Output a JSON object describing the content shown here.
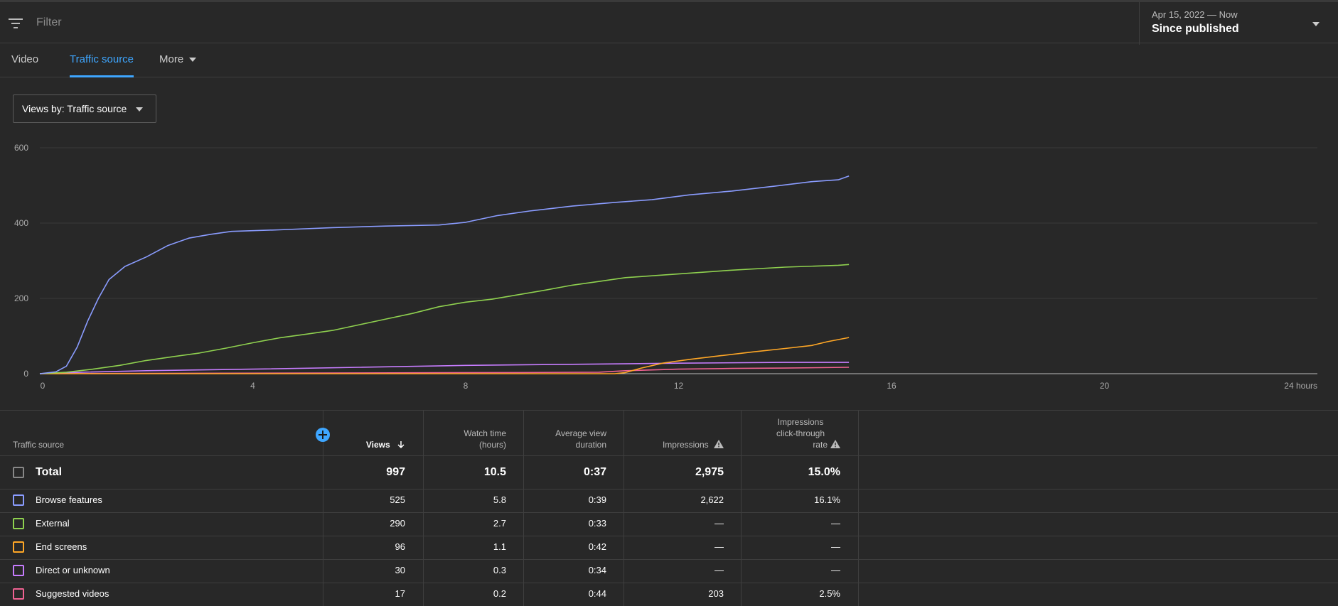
{
  "filter": {
    "placeholder": "Filter",
    "icon": "filter-icon"
  },
  "date": {
    "range": "Apr 15, 2022 — Now",
    "label": "Since published"
  },
  "tabs": [
    {
      "label": "Video",
      "active": false
    },
    {
      "label": "Traffic source",
      "active": true
    },
    {
      "label": "More",
      "active": false
    }
  ],
  "metric_select": {
    "label": "Views by: Traffic source"
  },
  "chart_data": {
    "type": "line",
    "xlabel": "",
    "ylabel": "",
    "xlim": [
      0,
      24
    ],
    "ylim": [
      0,
      600
    ],
    "x_ticks": [
      "0",
      "4",
      "8",
      "12",
      "16",
      "20",
      "24 hours"
    ],
    "y_ticks": [
      "0",
      "200",
      "400",
      "600"
    ],
    "grid": true,
    "series": [
      {
        "name": "Browse features",
        "color": "#8a9cff",
        "points": [
          [
            0,
            0
          ],
          [
            0.3,
            5
          ],
          [
            0.5,
            20
          ],
          [
            0.7,
            70
          ],
          [
            0.9,
            140
          ],
          [
            1.1,
            200
          ],
          [
            1.3,
            250
          ],
          [
            1.6,
            285
          ],
          [
            2.0,
            310
          ],
          [
            2.4,
            340
          ],
          [
            2.8,
            360
          ],
          [
            3.2,
            370
          ],
          [
            3.6,
            378
          ],
          [
            4.5,
            382
          ],
          [
            5.5,
            388
          ],
          [
            6.5,
            392
          ],
          [
            7.5,
            395
          ],
          [
            8.0,
            402
          ],
          [
            8.6,
            420
          ],
          [
            9.2,
            432
          ],
          [
            10.0,
            445
          ],
          [
            10.8,
            455
          ],
          [
            11.5,
            462
          ],
          [
            12.2,
            475
          ],
          [
            13.0,
            485
          ],
          [
            13.8,
            498
          ],
          [
            14.5,
            510
          ],
          [
            15.0,
            515
          ],
          [
            15.2,
            525
          ]
        ]
      },
      {
        "name": "External",
        "color": "#8fd14f",
        "points": [
          [
            0,
            0
          ],
          [
            0.5,
            4
          ],
          [
            1.0,
            12
          ],
          [
            1.5,
            22
          ],
          [
            2.0,
            35
          ],
          [
            2.5,
            45
          ],
          [
            3.0,
            55
          ],
          [
            3.5,
            68
          ],
          [
            4.0,
            82
          ],
          [
            4.5,
            95
          ],
          [
            5.0,
            105
          ],
          [
            5.5,
            115
          ],
          [
            6.0,
            130
          ],
          [
            6.5,
            145
          ],
          [
            7.0,
            160
          ],
          [
            7.5,
            178
          ],
          [
            8.0,
            190
          ],
          [
            8.5,
            198
          ],
          [
            9.0,
            210
          ],
          [
            9.5,
            222
          ],
          [
            10.0,
            235
          ],
          [
            10.5,
            245
          ],
          [
            11.0,
            255
          ],
          [
            11.5,
            260
          ],
          [
            12.0,
            265
          ],
          [
            12.5,
            270
          ],
          [
            13.0,
            275
          ],
          [
            14.0,
            283
          ],
          [
            15.0,
            288
          ],
          [
            15.2,
            290
          ]
        ]
      },
      {
        "name": "End screens",
        "color": "#ffa726",
        "points": [
          [
            0,
            0
          ],
          [
            10.8,
            0
          ],
          [
            11.0,
            3
          ],
          [
            11.3,
            15
          ],
          [
            11.7,
            28
          ],
          [
            12.2,
            38
          ],
          [
            12.8,
            48
          ],
          [
            13.4,
            58
          ],
          [
            14.0,
            67
          ],
          [
            14.5,
            75
          ],
          [
            14.8,
            85
          ],
          [
            15.2,
            96
          ]
        ]
      },
      {
        "name": "Direct or unknown",
        "color": "#c77dff",
        "points": [
          [
            0,
            0
          ],
          [
            0.8,
            4
          ],
          [
            2.0,
            8
          ],
          [
            4.0,
            12
          ],
          [
            6.0,
            17
          ],
          [
            8.0,
            22
          ],
          [
            10.0,
            25
          ],
          [
            12.0,
            28
          ],
          [
            14.0,
            30
          ],
          [
            15.2,
            30
          ]
        ]
      },
      {
        "name": "Suggested videos",
        "color": "#f06292",
        "points": [
          [
            0,
            0
          ],
          [
            2.0,
            1
          ],
          [
            6.0,
            2
          ],
          [
            9.0,
            3
          ],
          [
            10.5,
            4
          ],
          [
            11.0,
            8
          ],
          [
            11.5,
            10
          ],
          [
            12.0,
            12
          ],
          [
            13.0,
            14
          ],
          [
            14.0,
            15
          ],
          [
            15.2,
            17
          ]
        ]
      }
    ]
  },
  "table": {
    "headers": {
      "source": "Traffic source",
      "views": "Views",
      "watch_time": [
        "Watch time",
        "(hours)"
      ],
      "avg_duration": [
        "Average view",
        "duration"
      ],
      "impressions": "Impressions",
      "ctr": [
        "Impressions",
        "click-through",
        "rate"
      ]
    },
    "total": {
      "name": "Total",
      "views": "997",
      "watch_time": "10.5",
      "avg_duration": "0:37",
      "impressions": "2,975",
      "ctr": "15.0%"
    },
    "rows": [
      {
        "name": "Browse features",
        "color": "#8a9cff",
        "views": "525",
        "watch_time": "5.8",
        "avg_duration": "0:39",
        "impressions": "2,622",
        "ctr": "16.1%"
      },
      {
        "name": "External",
        "color": "#8fd14f",
        "views": "290",
        "watch_time": "2.7",
        "avg_duration": "0:33",
        "impressions": "—",
        "ctr": "—"
      },
      {
        "name": "End screens",
        "color": "#ffa726",
        "views": "96",
        "watch_time": "1.1",
        "avg_duration": "0:42",
        "impressions": "—",
        "ctr": "—"
      },
      {
        "name": "Direct or unknown",
        "color": "#c77dff",
        "views": "30",
        "watch_time": "0.3",
        "avg_duration": "0:34",
        "impressions": "—",
        "ctr": "—"
      },
      {
        "name": "Suggested videos",
        "color": "#f06292",
        "views": "17",
        "watch_time": "0.2",
        "avg_duration": "0:44",
        "impressions": "203",
        "ctr": "2.5%"
      }
    ]
  }
}
